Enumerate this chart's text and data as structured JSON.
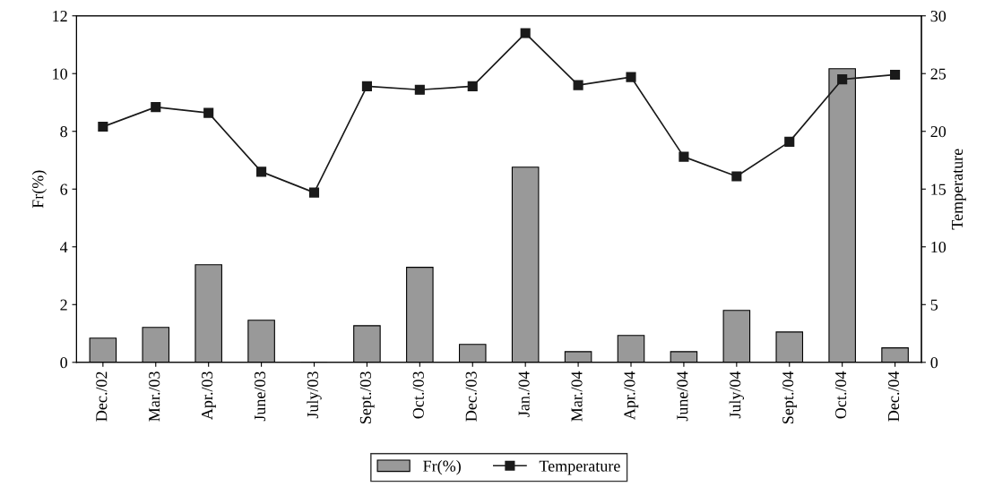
{
  "chart_data": {
    "type": "bar",
    "ylabel": "Fr(%)",
    "y2label": "Temperature",
    "categories": [
      "Dec./02",
      "Mar./03",
      "Apr./03",
      "June/03",
      "July/03",
      "Sept./03",
      "Oct./03",
      "Dec./03",
      "Jan./04",
      "Mar./04",
      "Apr./04",
      "June/04",
      "July/04",
      "Sept./04",
      "Oct./04",
      "Dec./04"
    ],
    "series": [
      {
        "name": "Fr(%)",
        "color": "#999999",
        "values": [
          0.84,
          1.21,
          3.38,
          1.46,
          0,
          1.27,
          3.29,
          0.62,
          6.76,
          0.37,
          0.93,
          0.37,
          1.8,
          1.05,
          10.17,
          0.5
        ]
      },
      {
        "name": "Temperature",
        "type": "line",
        "axis": "y2",
        "color": "#1a1a1a",
        "values": [
          20.4,
          22.1,
          21.6,
          16.5,
          14.7,
          23.9,
          23.6,
          23.9,
          28.5,
          24.0,
          24.7,
          17.8,
          16.1,
          19.1,
          24.5,
          24.9
        ]
      }
    ],
    "ylim": [
      0,
      12
    ],
    "yticks": [
      0,
      2,
      4,
      6,
      8,
      10,
      12
    ],
    "y2lim": [
      0,
      30
    ],
    "y2ticks": [
      0,
      5,
      10,
      15,
      20,
      25,
      30
    ],
    "marker": "square",
    "line_style": "solid",
    "grid": false,
    "legend": "bottom"
  }
}
